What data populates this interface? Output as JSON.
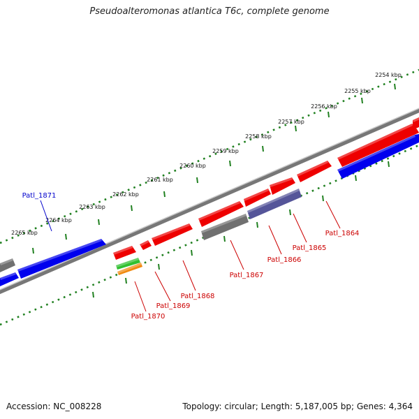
{
  "title": "Pseudoalteromonas atlantica T6c, complete genome",
  "footer": {
    "accession": "Accession: NC_008228",
    "summary": "Topology: circular; Length: 5,187,005 bp; Genes: 4,364"
  },
  "colors": {
    "backbone": "#808080",
    "tick_dots": "#208020",
    "tick_major": "#208020",
    "gene_red": "#ee0000",
    "gene_blue": "#0000ee",
    "gene_gray": "#707070",
    "gene_purple": "#555599",
    "gene_green": "#30c030",
    "gene_orange": "#f08a10",
    "label_red": "#cc0000",
    "label_blue": "#0000cc"
  },
  "scale_labels": [
    "2254 kbp",
    "2255 kbp",
    "2256 kbp",
    "2257 kbp",
    "2258 kbp",
    "2259 kbp",
    "2260 kbp",
    "2261 kbp",
    "2262 kbp",
    "2263 kbp",
    "2264 kbp",
    "2265 kbp"
  ],
  "gene_labels": [
    {
      "name": "Patl_1871",
      "color": "blue"
    },
    {
      "name": "Patl_1864",
      "color": "red"
    },
    {
      "name": "Patl_1865",
      "color": "red"
    },
    {
      "name": "Patl_1866",
      "color": "red"
    },
    {
      "name": "Patl_1867",
      "color": "red"
    },
    {
      "name": "Patl_1868",
      "color": "red"
    },
    {
      "name": "Patl_1869",
      "color": "red"
    },
    {
      "name": "Patl_1870",
      "color": "red"
    }
  ]
}
